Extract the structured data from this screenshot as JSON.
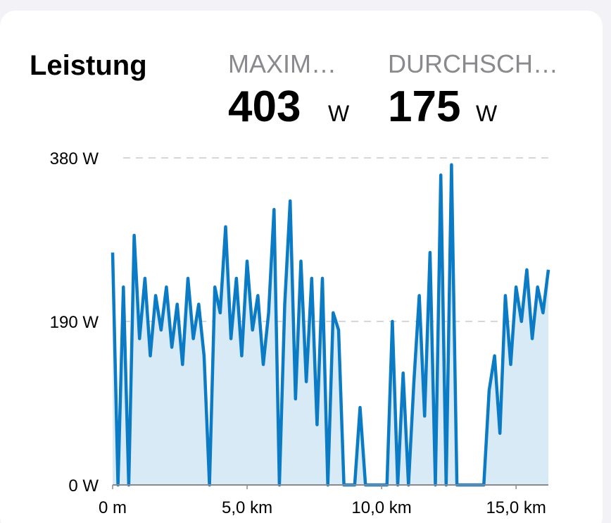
{
  "header": {
    "title": "Leistung",
    "max_label": "MAXIM…",
    "max_value": 403,
    "max_unit": "W",
    "avg_label": "DURCHSCH…",
    "avg_value": 175,
    "avg_unit": "W"
  },
  "chart_data": {
    "type": "area",
    "color": "#0a7bc4",
    "fill": "#d9eaf7",
    "grid": true,
    "xlim": [
      0,
      16.2
    ],
    "ylim": [
      0,
      380
    ],
    "xticks": [
      {
        "value": 0,
        "label": "0 m"
      },
      {
        "value": 5,
        "label": "5,0 km"
      },
      {
        "value": 10,
        "label": "10,0 km"
      },
      {
        "value": 15,
        "label": "15,0 km"
      }
    ],
    "yticks": [
      {
        "value": 0,
        "label": "0 W"
      },
      {
        "value": 190,
        "label": "190 W"
      },
      {
        "value": 380,
        "label": "380 W"
      }
    ],
    "x": [
      0.0,
      0.2,
      0.4,
      0.6,
      0.8,
      1.0,
      1.2,
      1.4,
      1.6,
      1.8,
      2.0,
      2.2,
      2.4,
      2.6,
      2.8,
      3.0,
      3.2,
      3.4,
      3.6,
      3.8,
      4.0,
      4.2,
      4.4,
      4.6,
      4.8,
      5.0,
      5.2,
      5.4,
      5.6,
      5.8,
      6.0,
      6.2,
      6.4,
      6.6,
      6.8,
      7.0,
      7.2,
      7.4,
      7.6,
      7.8,
      8.0,
      8.2,
      8.4,
      8.6,
      8.8,
      9.0,
      9.2,
      9.4,
      9.6,
      9.8,
      10.0,
      10.2,
      10.4,
      10.6,
      10.8,
      11.0,
      11.2,
      11.4,
      11.6,
      11.8,
      12.0,
      12.2,
      12.4,
      12.6,
      12.8,
      13.0,
      13.2,
      13.4,
      13.6,
      13.8,
      14.0,
      14.2,
      14.4,
      14.6,
      14.8,
      15.0,
      15.2,
      15.4,
      15.6,
      15.8,
      16.0,
      16.2
    ],
    "values": [
      270,
      0,
      230,
      0,
      290,
      170,
      240,
      150,
      220,
      180,
      230,
      160,
      210,
      140,
      240,
      170,
      210,
      150,
      0,
      230,
      200,
      300,
      170,
      240,
      150,
      260,
      180,
      220,
      140,
      200,
      320,
      0,
      210,
      330,
      100,
      260,
      120,
      240,
      70,
      240,
      0,
      200,
      180,
      0,
      0,
      0,
      90,
      0,
      0,
      0,
      0,
      0,
      190,
      0,
      130,
      0,
      120,
      220,
      80,
      270,
      0,
      360,
      0,
      372,
      0,
      0,
      0,
      0,
      0,
      0,
      110,
      150,
      60,
      220,
      140,
      230,
      190,
      250,
      170,
      230,
      200,
      250
    ]
  }
}
